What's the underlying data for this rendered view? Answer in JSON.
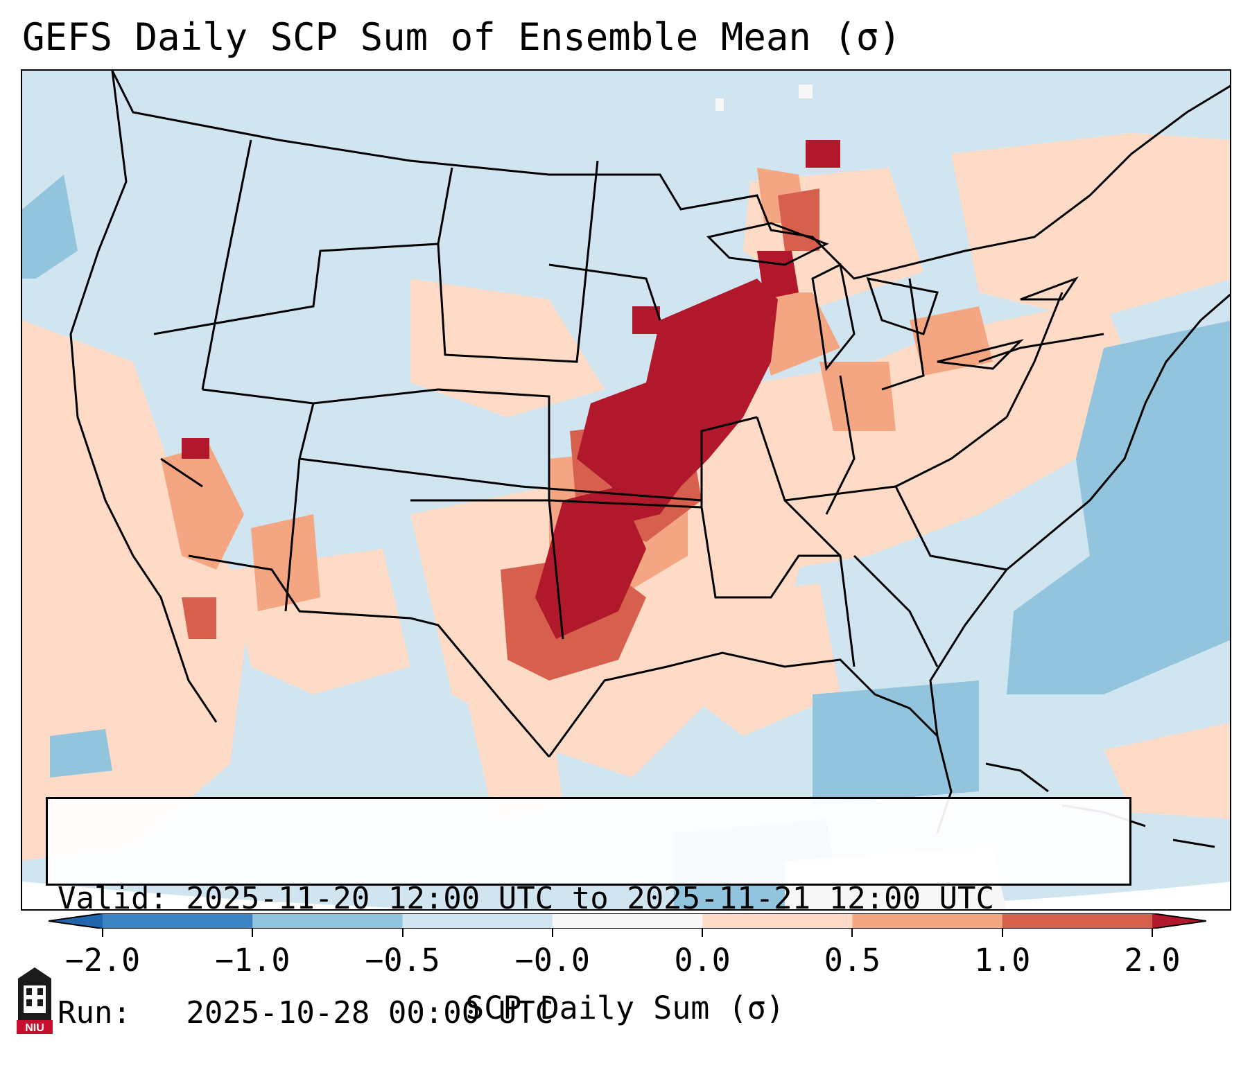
{
  "title": "GEFS Daily SCP Sum of Ensemble Mean (σ)",
  "info": {
    "valid": "Valid: 2025-11-20 12:00 UTC to 2025-11-21 12:00 UTC",
    "run": "Run:   2025-10-28 00:00 UTC"
  },
  "colorbar": {
    "label": "SCP Daily Sum (σ)",
    "ticks": [
      "−2.0",
      "−1.0",
      "−0.5",
      "−0.0",
      "0.0",
      "0.5",
      "1.0",
      "2.0"
    ],
    "colors": [
      "#3a84c2",
      "#92c4de",
      "#d1e5f0",
      "#f7f7f7",
      "#fddbc7",
      "#f4a582",
      "#d6604d"
    ],
    "extend_low_color": "#2166ac",
    "extend_high_color": "#b2182b"
  },
  "map": {
    "background_color": "#d1e5f0",
    "outline_color": "#000000"
  },
  "logo": {
    "text": "NIU"
  }
}
